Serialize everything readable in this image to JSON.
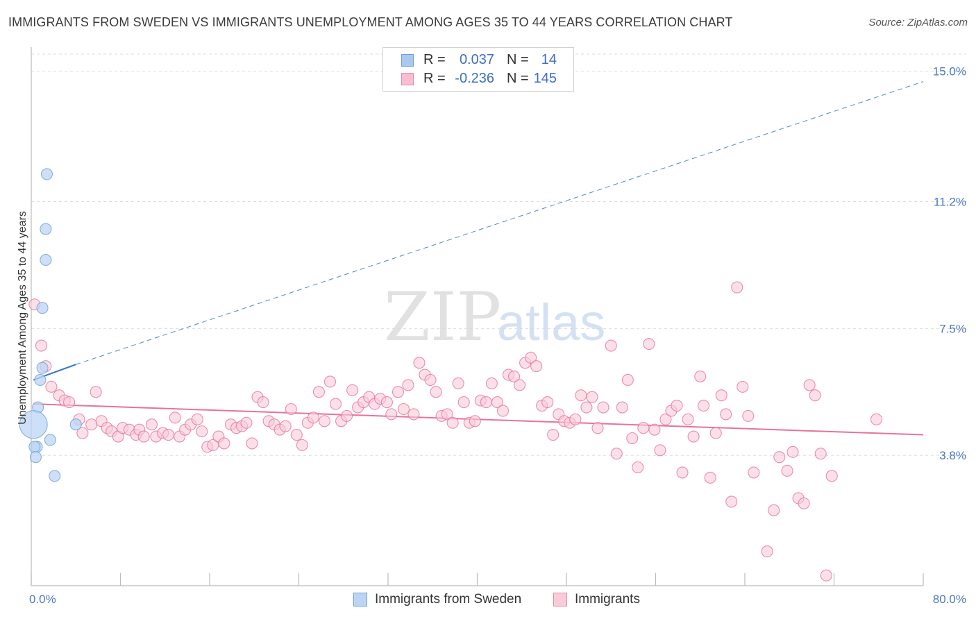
{
  "title": "IMMIGRANTS FROM SWEDEN VS IMMIGRANTS UNEMPLOYMENT AMONG AGES 35 TO 44 YEARS CORRELATION CHART",
  "source": "Source: ZipAtlas.com",
  "watermark": {
    "zip": "ZIP",
    "atlas": "atlas"
  },
  "legend_top": [
    {
      "r_label": "R =",
      "r_value": "0.037",
      "n_label": "N =",
      "n_value": "14",
      "color": "#a9c8f0",
      "border": "#6f9fd8"
    },
    {
      "r_label": "R =",
      "r_value": "-0.236",
      "n_label": "N =",
      "n_value": "145",
      "color": "#f7bdd0",
      "border": "#e88aa8"
    }
  ],
  "legend_bottom": [
    {
      "label": "Immigrants from Sweden",
      "color": "#bcd5f5",
      "border": "#6f9fd8"
    },
    {
      "label": "Immigrants",
      "color": "#f9cbd9",
      "border": "#e88aa8"
    }
  ],
  "chart_data": {
    "type": "scatter",
    "title": "IMMIGRANTS FROM SWEDEN VS IMMIGRANTS UNEMPLOYMENT AMONG AGES 35 TO 44 YEARS CORRELATION CHART",
    "xlabel": "",
    "ylabel": "Unemployment Among Ages 35 to 44 years",
    "xlim": [
      0,
      80
    ],
    "ylim": [
      0,
      15.5
    ],
    "x_tick_labels": [
      "0.0%",
      "80.0%"
    ],
    "y_ticks": [
      3.8,
      7.5,
      11.2,
      15.0
    ],
    "y_tick_labels": [
      "3.8%",
      "7.5%",
      "11.2%",
      "15.0%"
    ],
    "grid": "horizontal dashed",
    "series": [
      {
        "name": "Immigrants from Sweden",
        "color": "#6f9fd8",
        "fill": "#bcd5f5",
        "trend": {
          "from": [
            0.2,
            6.0
          ],
          "to": [
            4.0,
            6.45
          ],
          "extended_to": [
            80.0,
            14.7
          ]
        },
        "points": [
          [
            1.4,
            12.0
          ],
          [
            1.3,
            10.4
          ],
          [
            1.3,
            9.5
          ],
          [
            1.0,
            8.1
          ],
          [
            1.0,
            6.35
          ],
          [
            0.8,
            6.0
          ],
          [
            0.6,
            5.2
          ],
          [
            0.2,
            4.7
          ],
          [
            1.7,
            4.25
          ],
          [
            0.5,
            4.05
          ],
          [
            0.3,
            4.05
          ],
          [
            0.4,
            3.75
          ],
          [
            2.1,
            3.2
          ],
          [
            4.0,
            4.7
          ]
        ],
        "large_point": [
          0.2,
          4.7
        ]
      },
      {
        "name": "Immigrants",
        "color": "#e8729a",
        "fill": "#f9cbd9",
        "trend": {
          "from": [
            0.2,
            5.3
          ],
          "to": [
            80.0,
            4.4
          ]
        },
        "points": [
          [
            0.3,
            8.2
          ],
          [
            0.9,
            7.0
          ],
          [
            1.3,
            6.4
          ],
          [
            1.8,
            5.8
          ],
          [
            2.5,
            5.55
          ],
          [
            3.0,
            5.4
          ],
          [
            3.4,
            5.35
          ],
          [
            4.3,
            4.85
          ],
          [
            4.6,
            4.45
          ],
          [
            5.8,
            5.65
          ],
          [
            5.4,
            4.7
          ],
          [
            6.3,
            4.8
          ],
          [
            6.8,
            4.6
          ],
          [
            7.2,
            4.5
          ],
          [
            7.8,
            4.35
          ],
          [
            8.2,
            4.6
          ],
          [
            8.8,
            4.55
          ],
          [
            9.4,
            4.4
          ],
          [
            9.7,
            4.55
          ],
          [
            10.1,
            4.35
          ],
          [
            10.8,
            4.7
          ],
          [
            11.2,
            4.35
          ],
          [
            11.8,
            4.45
          ],
          [
            12.3,
            4.4
          ],
          [
            12.9,
            4.9
          ],
          [
            13.3,
            4.35
          ],
          [
            13.8,
            4.55
          ],
          [
            14.3,
            4.7
          ],
          [
            14.9,
            4.85
          ],
          [
            15.3,
            4.5
          ],
          [
            15.8,
            4.05
          ],
          [
            16.3,
            4.1
          ],
          [
            16.8,
            4.35
          ],
          [
            17.3,
            4.15
          ],
          [
            17.9,
            4.7
          ],
          [
            18.4,
            4.6
          ],
          [
            18.9,
            4.65
          ],
          [
            19.3,
            4.75
          ],
          [
            19.8,
            4.15
          ],
          [
            20.3,
            5.5
          ],
          [
            20.8,
            5.35
          ],
          [
            21.3,
            4.8
          ],
          [
            21.8,
            4.7
          ],
          [
            22.3,
            4.55
          ],
          [
            22.8,
            4.65
          ],
          [
            23.3,
            5.15
          ],
          [
            23.8,
            4.4
          ],
          [
            24.3,
            4.1
          ],
          [
            24.8,
            4.75
          ],
          [
            25.3,
            4.9
          ],
          [
            25.8,
            5.65
          ],
          [
            26.3,
            4.8
          ],
          [
            26.8,
            5.95
          ],
          [
            27.3,
            5.3
          ],
          [
            27.8,
            4.8
          ],
          [
            28.3,
            4.95
          ],
          [
            28.8,
            5.7
          ],
          [
            29.3,
            5.2
          ],
          [
            29.8,
            5.35
          ],
          [
            30.3,
            5.5
          ],
          [
            30.8,
            5.3
          ],
          [
            31.3,
            5.45
          ],
          [
            31.9,
            5.35
          ],
          [
            32.3,
            5.0
          ],
          [
            32.9,
            5.65
          ],
          [
            33.4,
            5.15
          ],
          [
            33.8,
            5.85
          ],
          [
            34.3,
            5.0
          ],
          [
            34.8,
            6.5
          ],
          [
            35.3,
            6.15
          ],
          [
            35.8,
            6.0
          ],
          [
            36.3,
            5.65
          ],
          [
            36.8,
            4.95
          ],
          [
            37.3,
            5.0
          ],
          [
            37.8,
            4.75
          ],
          [
            38.3,
            5.9
          ],
          [
            38.8,
            5.35
          ],
          [
            39.3,
            4.75
          ],
          [
            39.8,
            4.8
          ],
          [
            40.3,
            5.4
          ],
          [
            40.8,
            5.35
          ],
          [
            41.3,
            5.9
          ],
          [
            41.8,
            5.35
          ],
          [
            42.3,
            5.1
          ],
          [
            42.8,
            6.15
          ],
          [
            43.3,
            6.1
          ],
          [
            43.8,
            5.85
          ],
          [
            44.3,
            6.5
          ],
          [
            44.8,
            6.65
          ],
          [
            45.3,
            6.4
          ],
          [
            45.8,
            5.25
          ],
          [
            46.3,
            5.35
          ],
          [
            46.8,
            4.4
          ],
          [
            47.3,
            5.0
          ],
          [
            47.8,
            4.8
          ],
          [
            48.3,
            4.75
          ],
          [
            48.8,
            4.85
          ],
          [
            49.3,
            5.55
          ],
          [
            49.8,
            5.2
          ],
          [
            50.3,
            5.5
          ],
          [
            50.8,
            4.6
          ],
          [
            51.3,
            5.2
          ],
          [
            52.0,
            7.0
          ],
          [
            52.5,
            3.85
          ],
          [
            53.0,
            5.2
          ],
          [
            53.5,
            6.0
          ],
          [
            53.9,
            4.3
          ],
          [
            54.4,
            3.45
          ],
          [
            54.9,
            4.6
          ],
          [
            55.4,
            7.05
          ],
          [
            55.9,
            4.55
          ],
          [
            56.4,
            3.95
          ],
          [
            56.9,
            4.85
          ],
          [
            57.4,
            5.1
          ],
          [
            57.9,
            5.25
          ],
          [
            58.4,
            3.3
          ],
          [
            58.9,
            4.85
          ],
          [
            59.4,
            4.35
          ],
          [
            60.0,
            6.1
          ],
          [
            60.3,
            5.25
          ],
          [
            60.9,
            3.15
          ],
          [
            61.4,
            4.45
          ],
          [
            61.9,
            5.55
          ],
          [
            62.3,
            5.0
          ],
          [
            62.8,
            2.45
          ],
          [
            63.3,
            8.7
          ],
          [
            63.8,
            5.8
          ],
          [
            64.3,
            4.95
          ],
          [
            64.8,
            3.3
          ],
          [
            66.0,
            1.0
          ],
          [
            66.6,
            2.2
          ],
          [
            67.1,
            3.75
          ],
          [
            67.8,
            3.35
          ],
          [
            68.3,
            3.9
          ],
          [
            68.8,
            2.55
          ],
          [
            69.3,
            2.4
          ],
          [
            69.8,
            5.85
          ],
          [
            70.3,
            5.55
          ],
          [
            70.8,
            3.85
          ],
          [
            71.3,
            0.3
          ],
          [
            71.8,
            3.2
          ],
          [
            75.8,
            4.85
          ]
        ]
      }
    ]
  }
}
